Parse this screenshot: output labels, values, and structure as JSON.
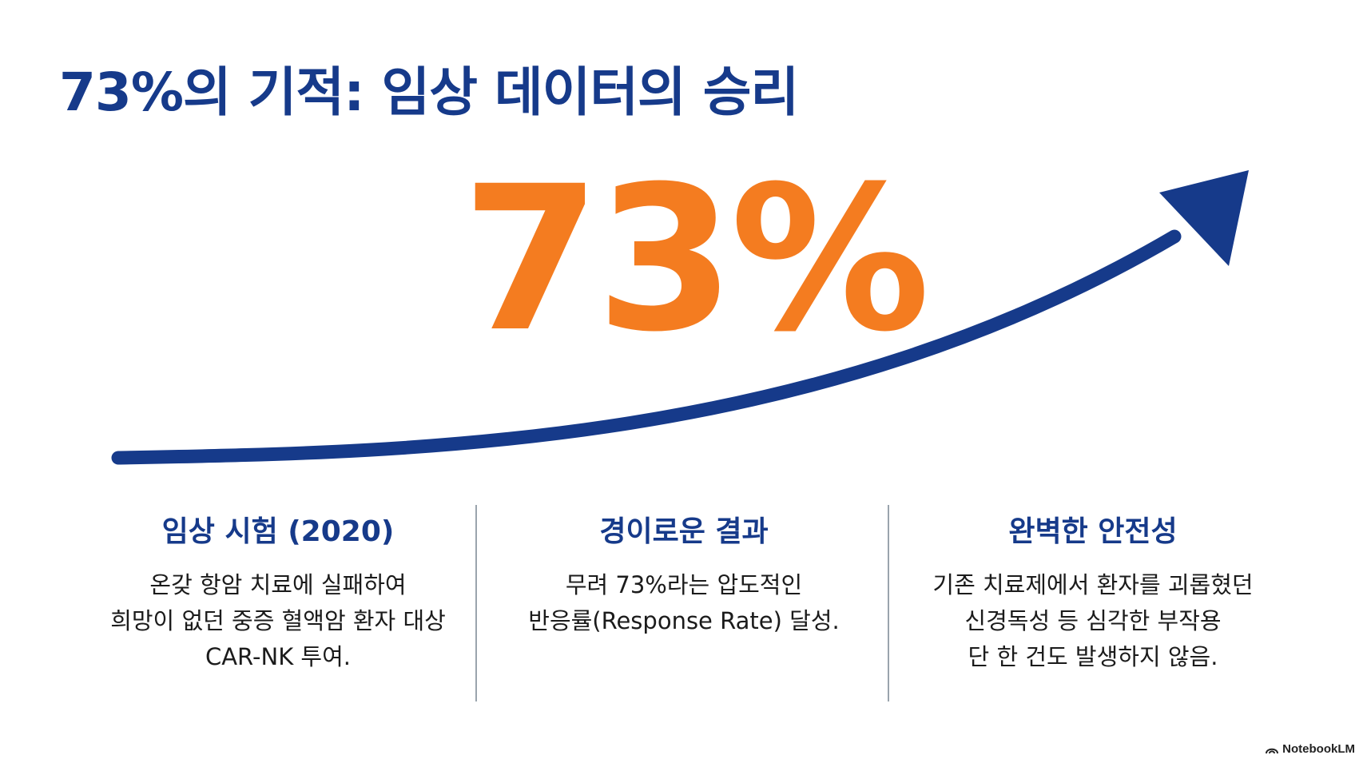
{
  "slide": {
    "title": "73%의 기적: 임상 데이터의 승리",
    "highlight_value": "73%"
  },
  "columns": [
    {
      "title": "임상 시험 (2020)",
      "lines": [
        "온갖 항암 치료에 실패하여",
        "희망이 없던 중증 혈액암 환자 대상",
        "CAR-NK 투여."
      ]
    },
    {
      "title": "경이로운 결과",
      "lines": [
        "무려 73%라는 압도적인",
        "반응률(Response Rate) 달성."
      ]
    },
    {
      "title": "완벽한 안전성",
      "lines": [
        "기존 치료제에서 환자를 괴롭혔던",
        "신경독성 등 심각한 부작용",
        "단 한 건도 발생하지 않음."
      ]
    }
  ],
  "branding": {
    "label": "NotebookLM"
  },
  "colors": {
    "title": "#163a8a",
    "highlight": "#f47c20",
    "arrow": "#163a8a",
    "divider": "#9aa4ad"
  }
}
